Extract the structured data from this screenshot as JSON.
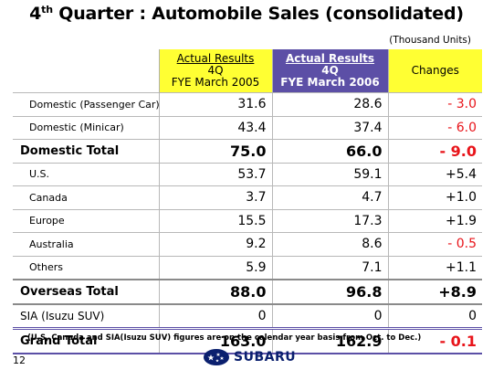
{
  "title": {
    "main_pre": "4",
    "sup": "th",
    "main_post": " Quarter : Automobile Sales (consolidated)"
  },
  "units": "(Thousand Units)",
  "headers": {
    "col_a": {
      "line1": "Actual Results",
      "line2": "4Q",
      "line3": "FYE March 2005"
    },
    "col_b": {
      "line1": "Actual Results",
      "line2": "4Q",
      "line3": "FYE March 2006"
    },
    "col_c": "Changes"
  },
  "rows": [
    {
      "label": "Domestic (Passenger Car)",
      "a": "31.6",
      "b": "28.6",
      "c": "- 3.0"
    },
    {
      "label": "Domestic (Minicar)",
      "a": "43.4",
      "b": "37.4",
      "c": "- 6.0"
    },
    {
      "label": "Domestic Total",
      "a": "75.0",
      "b": "66.0",
      "c": "- 9.0"
    },
    {
      "label": "U.S.",
      "a": "53.7",
      "b": "59.1",
      "c": "+5.4"
    },
    {
      "label": "Canada",
      "a": "3.7",
      "b": "4.7",
      "c": "+1.0"
    },
    {
      "label": "Europe",
      "a": "15.5",
      "b": "17.3",
      "c": "+1.9"
    },
    {
      "label": "Australia",
      "a": "9.2",
      "b": "8.6",
      "c": "- 0.5"
    },
    {
      "label": "Others",
      "a": "5.9",
      "b": "7.1",
      "c": "+1.1"
    },
    {
      "label": "Overseas Total",
      "a": "88.0",
      "b": "96.8",
      "c": "+8.9"
    },
    {
      "label": "SIA (Isuzu SUV)",
      "a": "0",
      "b": "0",
      "c": "0"
    },
    {
      "label": "Grand Total",
      "a": "163.0",
      "b": "162.9",
      "c": "- 0.1"
    }
  ],
  "note": "(U.S, Canada and SIA(Isuzu SUV) figures are on the calendar year basis from Oct. to Dec.)",
  "page_number": "12",
  "logo": {
    "text": "SUBARU",
    "icon": "subaru-stars-icon",
    "color": "#0a1f6e"
  },
  "colors": {
    "header_yellow": "#ffff33",
    "header_purple": "#5c4fa6",
    "negative": "#e8141a"
  }
}
